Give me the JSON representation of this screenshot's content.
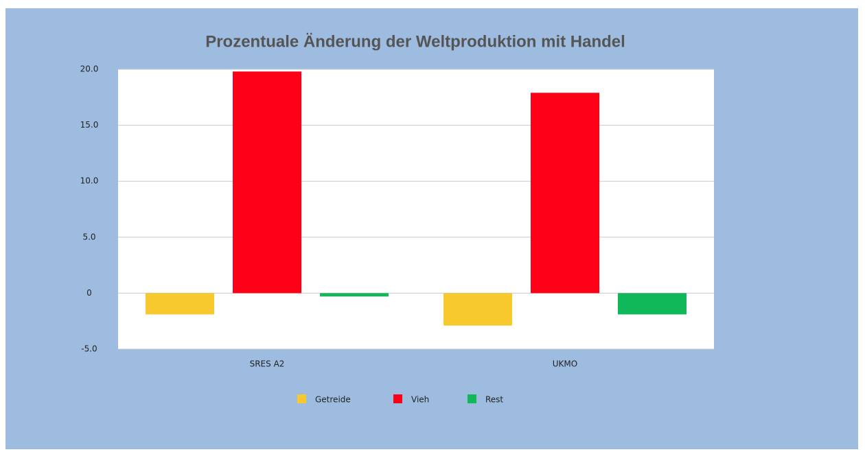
{
  "chart_data": {
    "type": "bar",
    "title": "Prozentuale Änderung der Weltproduktion mit Handel",
    "categories": [
      "SRES A2",
      "UKMO"
    ],
    "series": [
      {
        "name": "Getreide",
        "color": "#f7c92e",
        "values": [
          -1.9,
          -2.9
        ]
      },
      {
        "name": "Vieh",
        "color": "#ff0019",
        "values": [
          19.8,
          17.9
        ]
      },
      {
        "name": "Rest",
        "color": "#11b85a",
        "values": [
          -0.3,
          -1.9
        ]
      }
    ],
    "ylim": [
      -5,
      20
    ],
    "yticks": [
      {
        "value": -5,
        "label": "-5.0"
      },
      0,
      {
        "value": 5,
        "label": "5.0"
      },
      {
        "value": 10,
        "label": "10.0"
      },
      {
        "value": 15,
        "label": "15.0"
      },
      {
        "value": 20,
        "label": "20.0"
      }
    ],
    "grid": true,
    "legend": "bottom"
  }
}
